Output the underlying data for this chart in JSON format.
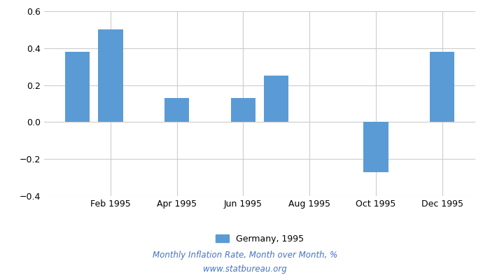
{
  "bar_positions": [
    1,
    2,
    4,
    6,
    7,
    10,
    12
  ],
  "bar_values": [
    0.38,
    0.5,
    0.13,
    0.13,
    0.25,
    -0.27,
    0.38
  ],
  "bar_color": "#5b9bd5",
  "legend_label": "Germany, 1995",
  "ylim": [
    -0.4,
    0.6
  ],
  "yticks": [
    -0.4,
    -0.2,
    0.0,
    0.2,
    0.4,
    0.6
  ],
  "xtick_positions": [
    2,
    4,
    6,
    8,
    10,
    12
  ],
  "xtick_labels": [
    "Feb 1995",
    "Apr 1995",
    "Jun 1995",
    "Aug 1995",
    "Oct 1995",
    "Dec 1995"
  ],
  "xlim": [
    0,
    13
  ],
  "bar_width": 0.75,
  "footer_line1": "Monthly Inflation Rate, Month over Month, %",
  "footer_line2": "www.statbureau.org",
  "background_color": "#ffffff",
  "grid_color": "#cccccc",
  "footer_color": "#4472c4"
}
